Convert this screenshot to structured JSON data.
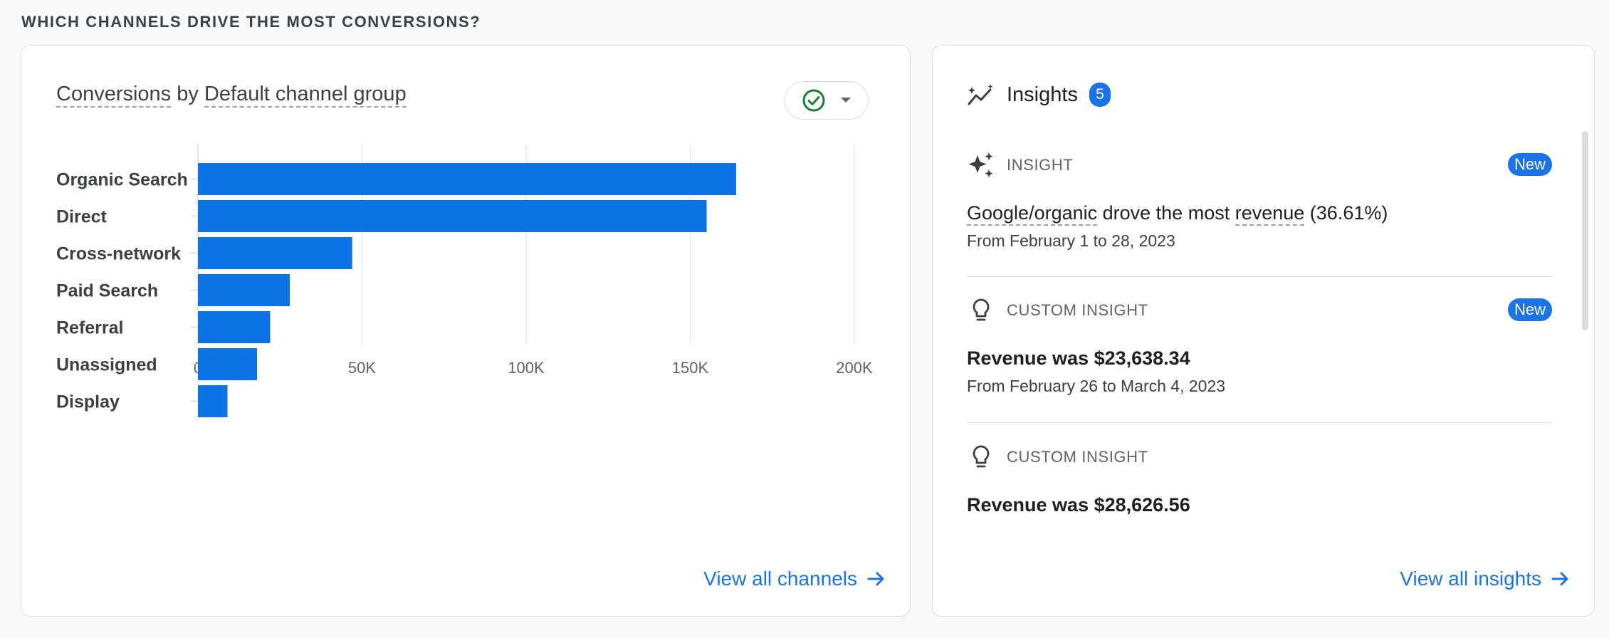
{
  "section": {
    "title": "WHICH CHANNELS DRIVE THE MOST CONVERSIONS?"
  },
  "chart_card": {
    "title_part1": "Conversions",
    "title_mid": " by ",
    "title_part2": "Default channel group",
    "view_all_label": "View all channels"
  },
  "chart_data": {
    "type": "bar",
    "orientation": "horizontal",
    "categories": [
      "Organic Search",
      "Direct",
      "Cross-network",
      "Paid Search",
      "Referral",
      "Unassigned",
      "Display"
    ],
    "values": [
      164000,
      155000,
      47000,
      28000,
      22000,
      18000,
      9000
    ],
    "xlim": [
      0,
      200000
    ],
    "ticks": [
      0,
      50000,
      100000,
      150000,
      200000
    ],
    "tick_labels": [
      "0",
      "50K",
      "100K",
      "150K",
      "200K"
    ],
    "color": "#0b73e6",
    "grid": true
  },
  "insights_card": {
    "title": "Insights",
    "count": "5",
    "view_all_label": "View all insights",
    "items": [
      {
        "type": "INSIGHT",
        "badge": "New",
        "headline_part1": "Google/organic",
        "headline_mid": " drove the most ",
        "headline_part2": "revenue",
        "headline_tail": " (36.61%)",
        "date": "From February 1 to 28, 2023"
      },
      {
        "type": "CUSTOM INSIGHT",
        "badge": "New",
        "headline": "Revenue was $23,638.34",
        "date": "From February 26 to March 4, 2023"
      },
      {
        "type": "CUSTOM INSIGHT",
        "headline": "Revenue was $28,626.56"
      }
    ]
  },
  "colors": {
    "accent": "#1a73e8",
    "success": "#188038"
  }
}
